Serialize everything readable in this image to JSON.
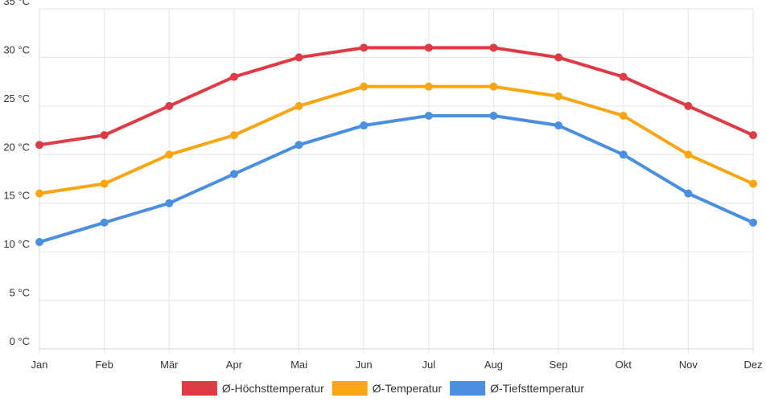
{
  "chart_data": {
    "type": "line",
    "title": "",
    "xlabel": "",
    "ylabel": "",
    "categories": [
      "Jan",
      "Feb",
      "Mär",
      "Apr",
      "Mai",
      "Jun",
      "Jul",
      "Aug",
      "Sep",
      "Okt",
      "Nov",
      "Dez"
    ],
    "ylim": [
      0,
      35
    ],
    "y_tick_step": 5,
    "y_unit": "°C",
    "grid": true,
    "legend_position": "bottom-center",
    "series": [
      {
        "name": "Ø-Höchsttemperatur",
        "color": "#e03a45",
        "values": [
          21,
          22,
          25,
          28,
          30,
          31,
          31,
          31,
          30,
          28,
          25,
          22
        ]
      },
      {
        "name": "Ø-Temperatur",
        "color": "#f9a614",
        "values": [
          16,
          17,
          20,
          22,
          25,
          27,
          27,
          27,
          26,
          24,
          20,
          17
        ]
      },
      {
        "name": "Ø-Tiefsttemperatur",
        "color": "#4a8fe0",
        "values": [
          11,
          13,
          15,
          18,
          21,
          23,
          24,
          24,
          23,
          20,
          16,
          13
        ]
      }
    ]
  }
}
